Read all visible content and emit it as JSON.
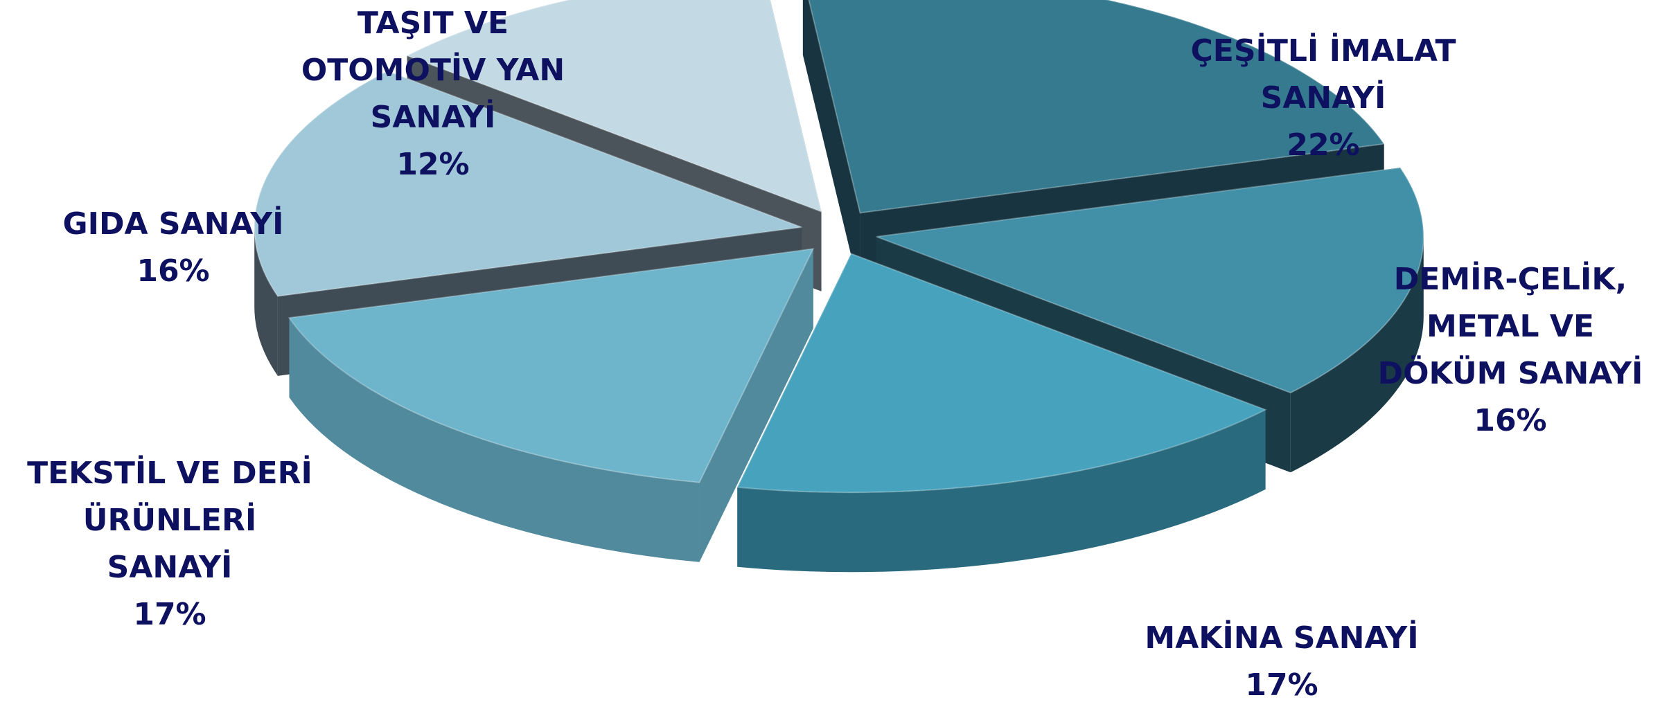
{
  "chart_data": {
    "type": "pie",
    "style": "3d-exploded",
    "slices": [
      {
        "lines": [
          "ÇEŞİTLİ İMALAT",
          "SANAYİ"
        ],
        "value": 22,
        "pct": "22%",
        "top": "#357a8f",
        "side": "#173440"
      },
      {
        "lines": [
          "DEMİR-ÇELİK,",
          "METAL VE",
          "DÖKÜM SANAYİ"
        ],
        "value": 16,
        "pct": "16%",
        "top": "#4290a8",
        "side": "#1a3a46"
      },
      {
        "lines": [
          "MAKİNA  SANAYİ"
        ],
        "value": 17,
        "pct": "17%",
        "top": "#47a3bd",
        "side": "#2a6a7e"
      },
      {
        "lines": [
          "TEKSTİL VE DERİ",
          "ÜRÜNLERİ",
          "SANAYİ"
        ],
        "value": 17,
        "pct": "17%",
        "top": "#6eb4cb",
        "side": "#528a9d"
      },
      {
        "lines": [
          "GIDA SANAYİ"
        ],
        "value": 16,
        "pct": "16%",
        "top": "#a0c8d8",
        "side": "#3f4c55"
      },
      {
        "lines": [
          "TAŞIT VE",
          "OTOMOTİV YAN",
          "SANAYİ"
        ],
        "value": 12,
        "pct": "12%",
        "top": "#c3dae4",
        "side": "#4b545b"
      }
    ]
  }
}
